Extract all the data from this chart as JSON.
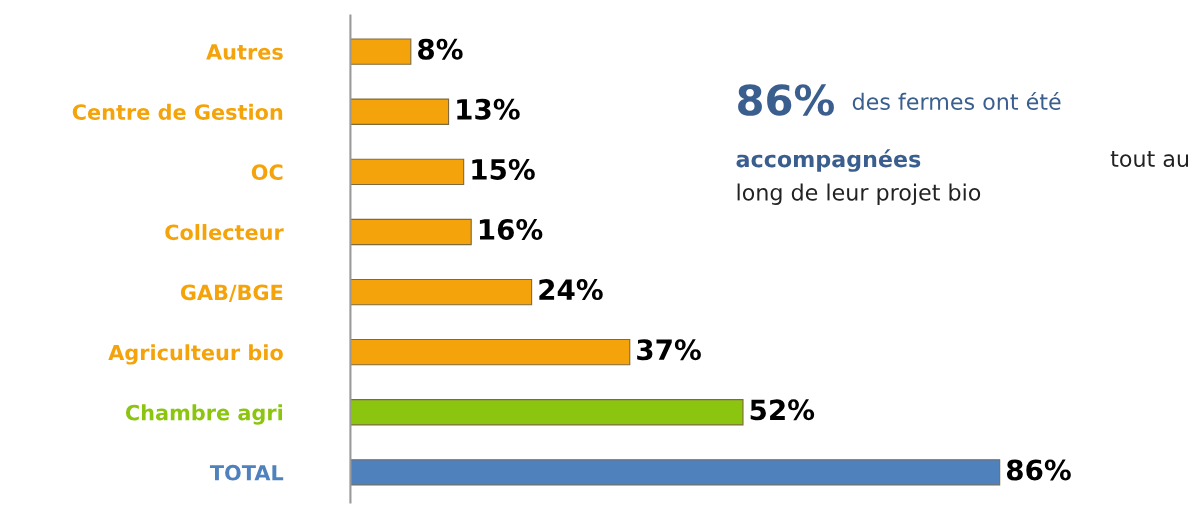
{
  "chart_data": {
    "type": "bar",
    "orientation": "horizontal",
    "categories": [
      "Autres",
      "Centre de Gestion",
      "OC",
      "Collecteur",
      "GAB/BGE",
      "Agriculteur bio",
      "Chambre agri",
      "TOTAL"
    ],
    "values": [
      8,
      13,
      15,
      16,
      24,
      37,
      52,
      86
    ],
    "colors": [
      "#f5a30a",
      "#f5a30a",
      "#f5a30a",
      "#f5a30a",
      "#f5a30a",
      "#f5a30a",
      "#8cc510",
      "#4f81bd"
    ],
    "value_labels": [
      "8%",
      "13%",
      "15%",
      "16%",
      "24%",
      "37%",
      "52%",
      "86%"
    ],
    "tick_labels": "y",
    "grid": false,
    "annotations": [
      "86%",
      "des fermes ont été",
      "accompagnées",
      "tout au long de leur projet bio"
    ]
  }
}
